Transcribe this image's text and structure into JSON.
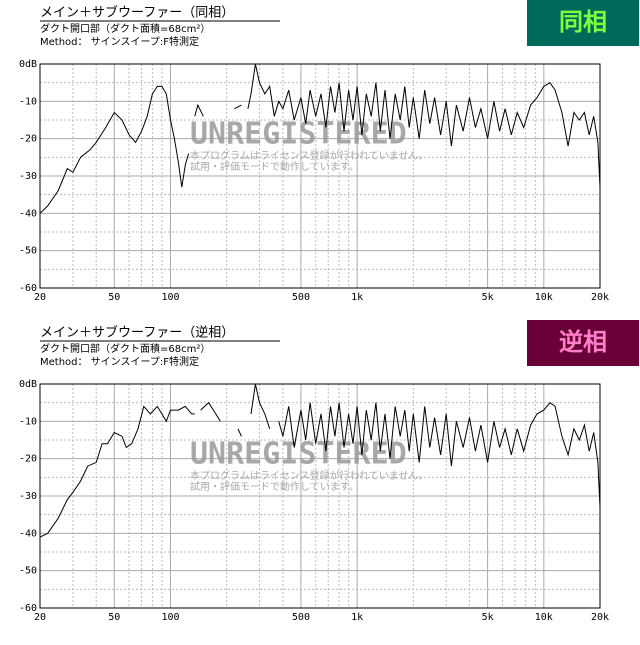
{
  "chart_data": [
    {
      "type": "line",
      "title": "メイン＋サブウーファー（同相）",
      "subtitle": "ダクト開口部（ダクト面積=68cm²）",
      "note": "Method： サインスイープ:F特測定",
      "badge": "同相",
      "badge_color": "#006a5a",
      "badge_text_color": "#80ff40",
      "watermark": [
        "UNREGISTERED",
        "本プログラムはライセンス登録が行われていません。",
        "試用・評価モードで動作しています。"
      ],
      "log_x": true,
      "grid": true,
      "xlim": [
        20,
        20000
      ],
      "ylim": [
        -60,
        0
      ],
      "xticks": [
        20,
        50,
        100,
        500,
        {
          "value": 1000,
          "label": "1k"
        },
        {
          "value": 5000,
          "label": "5k"
        },
        {
          "value": 10000,
          "label": "10k"
        },
        {
          "value": 20000,
          "label": "20k"
        }
      ],
      "x_minor_ticks": [
        30,
        40,
        60,
        70,
        80,
        90,
        200,
        300,
        400,
        600,
        700,
        800,
        900,
        2000,
        3000,
        4000,
        6000,
        7000,
        8000,
        9000
      ],
      "yticks": [
        {
          "value": 0,
          "label": "0dB"
        },
        -10,
        -20,
        -30,
        -40,
        -50,
        -60
      ],
      "y_minor_ticks": [
        -5,
        -15,
        -25,
        -35,
        -45,
        -55
      ],
      "series": [
        {
          "color": "#000000",
          "x": [
            20,
            22,
            25,
            27,
            28,
            30,
            33,
            37,
            40,
            45,
            50,
            55,
            60,
            65,
            70,
            75,
            80,
            85,
            90,
            95,
            100,
            105,
            110,
            115,
            120,
            125,
            null,
            135,
            140,
            150,
            null,
            220,
            240,
            null,
            260,
            270,
            285,
            300,
            320,
            340,
            360,
            380,
            400,
            430,
            460,
            500,
            530,
            560,
            600,
            640,
            680,
            720,
            760,
            800,
            850,
            900,
            950,
            1000,
            1060,
            1120,
            1190,
            1260,
            1330,
            1410,
            1500,
            1600,
            1700,
            1800,
            1900,
            2000,
            2150,
            2300,
            2450,
            2600,
            2800,
            3000,
            3200,
            3400,
            3700,
            4000,
            4300,
            4600,
            5000,
            5400,
            5800,
            6200,
            6700,
            7200,
            7800,
            8500,
            9200,
            10000,
            10800,
            11500,
            12500,
            13500,
            14500,
            15500,
            16500,
            17500,
            18500,
            19500,
            20000
          ],
          "values": [
            -40,
            -38,
            -34,
            -30,
            -28,
            -29,
            -25,
            -23,
            -21,
            -17,
            -13,
            -15,
            -19,
            -21,
            -18,
            -14,
            -8,
            -6,
            -6,
            -8,
            -15,
            -20,
            -26,
            -33,
            -27,
            -24,
            null,
            -14,
            -11,
            -14,
            null,
            -12,
            -11,
            null,
            -12,
            -8,
            0,
            -5,
            -8,
            -6,
            -14,
            -10,
            -12,
            -7,
            -15,
            -9,
            -16,
            -7,
            -14,
            -8,
            -17,
            -6,
            -13,
            -5,
            -18,
            -7,
            -15,
            -6,
            -19,
            -8,
            -14,
            -5,
            -18,
            -7,
            -20,
            -8,
            -15,
            -6,
            -17,
            -9,
            -20,
            -7,
            -16,
            -9,
            -19,
            -10,
            -22,
            -11,
            -18,
            -9,
            -17,
            -12,
            -20,
            -10,
            -18,
            -12,
            -19,
            -13,
            -17,
            -11,
            -9,
            -6,
            -5,
            -7,
            -13,
            -22,
            -13,
            -15,
            -13,
            -19,
            -14,
            -21,
            -33
          ]
        }
      ]
    },
    {
      "type": "line",
      "title": "メイン＋サブウーファー（逆相）",
      "subtitle": "ダクト開口部（ダクト面積=68cm²）",
      "note": "Method： サインスイープ:F特測定",
      "badge": "逆相",
      "badge_color": "#6a0038",
      "badge_text_color": "#ff80c8",
      "watermark": [
        "UNREGISTERED",
        "本プログラムはライセンス登録が行われていません。",
        "試用・評価モードで動作しています。"
      ],
      "log_x": true,
      "grid": true,
      "xlim": [
        20,
        20000
      ],
      "ylim": [
        -60,
        0
      ],
      "xticks": [
        20,
        50,
        100,
        500,
        {
          "value": 1000,
          "label": "1k"
        },
        {
          "value": 5000,
          "label": "5k"
        },
        {
          "value": 10000,
          "label": "10k"
        },
        {
          "value": 20000,
          "label": "20k"
        }
      ],
      "x_minor_ticks": [
        30,
        40,
        60,
        70,
        80,
        90,
        200,
        300,
        400,
        600,
        700,
        800,
        900,
        2000,
        3000,
        4000,
        6000,
        7000,
        8000,
        9000
      ],
      "yticks": [
        {
          "value": 0,
          "label": "0dB"
        },
        -10,
        -20,
        -30,
        -40,
        -50,
        -60
      ],
      "y_minor_ticks": [
        -5,
        -15,
        -25,
        -35,
        -45,
        -55
      ],
      "series": [
        {
          "color": "#000000",
          "x": [
            20,
            22,
            25,
            28,
            30,
            33,
            36,
            40,
            43,
            46,
            50,
            55,
            58,
            62,
            67,
            72,
            78,
            85,
            90,
            95,
            100,
            110,
            120,
            130,
            135,
            null,
            145,
            160,
            175,
            185,
            null,
            230,
            240,
            null,
            270,
            285,
            300,
            320,
            340,
            null,
            380,
            400,
            430,
            460,
            500,
            530,
            560,
            600,
            640,
            680,
            720,
            760,
            800,
            850,
            900,
            950,
            1000,
            1060,
            1120,
            1190,
            1260,
            1330,
            1410,
            1500,
            1600,
            1700,
            1800,
            1900,
            2000,
            2150,
            2300,
            2450,
            2600,
            2800,
            3000,
            3200,
            3400,
            3700,
            4000,
            4300,
            4600,
            5000,
            5400,
            5800,
            6200,
            6700,
            7200,
            7800,
            8500,
            9200,
            10000,
            10800,
            11500,
            12500,
            13500,
            14500,
            15500,
            16500,
            17500,
            18500,
            19500,
            20000
          ],
          "values": [
            -41,
            -40,
            -36,
            -31,
            -29,
            -26,
            -22,
            -21,
            -16,
            -16,
            -13,
            -14,
            -17,
            -16,
            -12,
            -6,
            -8,
            -6,
            -8,
            -10,
            -7,
            -7,
            -6,
            -8,
            -8,
            null,
            -7,
            -5,
            -8,
            -10,
            null,
            -12,
            -14,
            null,
            -8,
            0,
            -5,
            -8,
            -12,
            null,
            -10,
            -14,
            -6,
            -17,
            -7,
            -15,
            -5,
            -16,
            -8,
            -18,
            -6,
            -14,
            -5,
            -17,
            -8,
            -16,
            -6,
            -19,
            -7,
            -15,
            -5,
            -18,
            -8,
            -20,
            -6,
            -14,
            -7,
            -18,
            -8,
            -21,
            -6,
            -17,
            -9,
            -19,
            -8,
            -22,
            -10,
            -17,
            -9,
            -18,
            -11,
            -21,
            -10,
            -17,
            -12,
            -19,
            -12,
            -18,
            -11,
            -8,
            -7,
            -5,
            -6,
            -14,
            -19,
            -12,
            -15,
            -11,
            -18,
            -13,
            -21,
            -33
          ]
        }
      ]
    }
  ]
}
